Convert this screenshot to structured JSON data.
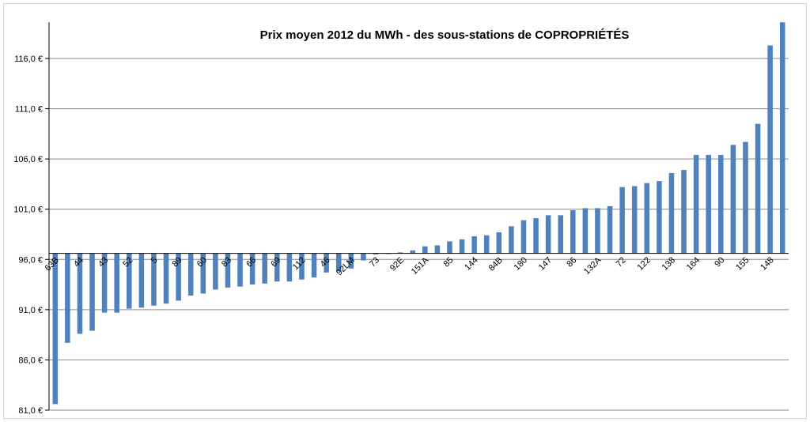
{
  "chart_data": {
    "type": "bar",
    "title": "Prix moyen 2012 du MWh - des sous-stations de COPROPRIÉTÉS",
    "xlabel": "",
    "ylabel": "",
    "ylim": [
      81.0,
      119.6
    ],
    "y_cross": 96.6,
    "y_ticks": [
      "81,0 €",
      "86,0 €",
      "91,0 €",
      "96,0 €",
      "101,0 €",
      "106,0 €",
      "111,0 €",
      "116,0 €"
    ],
    "y_tick_values": [
      81,
      86,
      91,
      96,
      101,
      106,
      111,
      116
    ],
    "categories": [
      "63B",
      "",
      "44",
      "",
      "43",
      "",
      "52",
      "",
      "5",
      "",
      "89",
      "",
      "60",
      "",
      "83",
      "",
      "66",
      "",
      "69",
      "",
      "112",
      "",
      "46",
      "",
      "92LM",
      "",
      "73",
      "",
      "92E",
      "",
      "151A",
      "",
      "85",
      "",
      "144",
      "",
      "84B",
      "",
      "180",
      "",
      "147",
      "",
      "86",
      "",
      "132A",
      "",
      "72",
      "",
      "122",
      "",
      "138",
      "",
      "164",
      "",
      "90",
      "",
      "155",
      "",
      "148",
      ""
    ],
    "values": [
      81.6,
      87.7,
      88.6,
      88.9,
      90.7,
      90.7,
      91.1,
      91.2,
      91.4,
      91.6,
      91.9,
      92.4,
      92.6,
      93.0,
      93.2,
      93.3,
      93.5,
      93.6,
      93.8,
      93.8,
      94.0,
      94.2,
      94.7,
      94.8,
      95.1,
      95.9,
      96.5,
      96.6,
      96.7,
      96.9,
      97.3,
      97.4,
      97.8,
      98.0,
      98.3,
      98.4,
      98.7,
      99.3,
      99.9,
      100.1,
      100.4,
      100.4,
      100.9,
      101.1,
      101.1,
      101.3,
      103.2,
      103.3,
      103.6,
      103.8,
      104.6,
      104.9,
      106.4,
      106.4,
      106.4,
      107.4,
      107.7,
      109.5,
      117.3,
      119.6
    ],
    "grid": true,
    "bar_color": "#4f81bd"
  }
}
